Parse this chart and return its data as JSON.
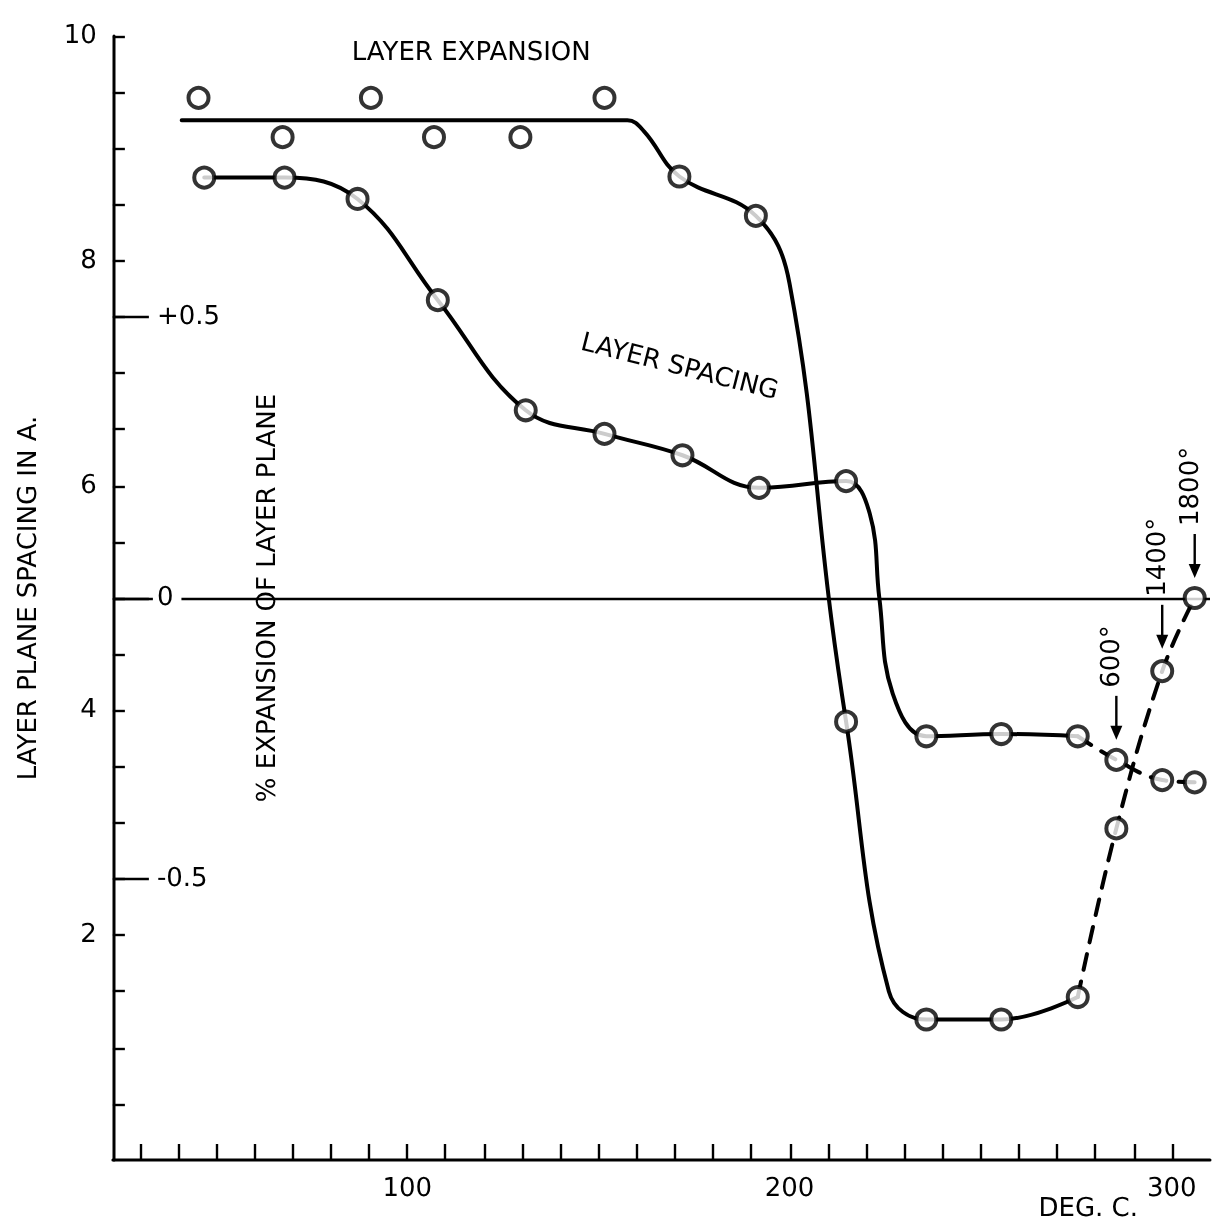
{
  "chart_data": {
    "type": "line",
    "xlabel": "DEG. C.",
    "ylabel": "LAYER PLANE SPACING IN A.",
    "y2label": "% EXPANSION OF LAYER PLANE",
    "xlim": [
      23,
      310
    ],
    "xticks": [
      {
        "value": 30,
        "label": null
      },
      {
        "value": 40,
        "label": null
      },
      {
        "value": 50,
        "label": null
      },
      {
        "value": 60,
        "label": null
      },
      {
        "value": 70,
        "label": null
      },
      {
        "value": 80,
        "label": null
      },
      {
        "value": 90,
        "label": null
      },
      100,
      {
        "value": 110,
        "label": null
      },
      {
        "value": 120,
        "label": null
      },
      {
        "value": 130,
        "label": null
      },
      {
        "value": 140,
        "label": null
      },
      {
        "value": 150,
        "label": null
      },
      {
        "value": 160,
        "label": null
      },
      {
        "value": 170,
        "label": null
      },
      {
        "value": 180,
        "label": null
      },
      {
        "value": 190,
        "label": null
      },
      200,
      {
        "value": 210,
        "label": null
      },
      {
        "value": 220,
        "label": null
      },
      {
        "value": 230,
        "label": null
      },
      {
        "value": 240,
        "label": null
      },
      {
        "value": 250,
        "label": null
      },
      {
        "value": 260,
        "label": null
      },
      {
        "value": 270,
        "label": null
      },
      {
        "value": 280,
        "label": null
      },
      {
        "value": 290,
        "label": null
      },
      300
    ],
    "ylim": [
      0,
      10
    ],
    "yticks": [
      {
        "value": 0.5,
        "label": null
      },
      {
        "value": 1,
        "label": null
      },
      {
        "value": 1.5,
        "label": null
      },
      2,
      {
        "value": 2.5,
        "label": null
      },
      {
        "value": 3,
        "label": null
      },
      {
        "value": 3.5,
        "label": null
      },
      4,
      {
        "value": 4.5,
        "label": null
      },
      {
        "value": 5,
        "label": null
      },
      {
        "value": 5.5,
        "label": null
      },
      6,
      {
        "value": 6.5,
        "label": null
      },
      {
        "value": 7,
        "label": null
      },
      {
        "value": 7.5,
        "label": null
      },
      8,
      {
        "value": 8.5,
        "label": null
      },
      {
        "value": 9,
        "label": null
      },
      {
        "value": 9.5,
        "label": null
      },
      10
    ],
    "y2lim": [
      -1,
      1
    ],
    "y2ticks": [
      {
        "value": -0.5,
        "label": "-0.5"
      },
      0,
      {
        "value": 0.5,
        "label": "+0.5"
      }
    ],
    "grid": false,
    "legend": false,
    "ref_lines": [
      {
        "axis": "y2",
        "value": 0,
        "color": "#000000",
        "line_style": "solid"
      }
    ],
    "annotations": [
      {
        "text": "600°",
        "x": 285.5,
        "y": 3.56
      },
      {
        "text": "1400°",
        "x": 297.5,
        "y": 4.37
      },
      {
        "text": "1800°",
        "x": 306,
        "y": 5.0
      }
    ],
    "series": [
      {
        "type": "scatter",
        "axis": "y2",
        "marker": "circle",
        "color": "#000000",
        "x": [
          45.4,
          67.4,
          90.5,
          107,
          129.6,
          151.6,
          171.2,
          191.2,
          214.8,
          235.8,
          255.4,
          275.4,
          285.5,
          297.5,
          306
        ],
        "values": [
          0.89,
          0.82,
          0.89,
          0.82,
          0.82,
          0.89,
          0.75,
          0.68,
          -0.22,
          -0.75,
          -0.75,
          -0.71,
          -0.41,
          -0.13,
          0
        ]
      },
      {
        "type": "scatter",
        "axis": "y",
        "marker": "circle",
        "color": "#000000",
        "x": [
          46.9,
          67.9,
          87,
          108,
          131,
          151.6,
          172,
          192,
          214.8,
          235.8,
          255.4,
          275.4,
          285.5,
          297.5,
          306
        ],
        "values": [
          8.74,
          8.74,
          8.55,
          7.65,
          6.67,
          6.46,
          6.27,
          5.98,
          6.04,
          3.77,
          3.79,
          3.77,
          3.56,
          3.38,
          3.36
        ]
      },
      {
        "type": "line",
        "name": "LAYER EXPANSION",
        "axis": "y2",
        "marker": "none",
        "line_style": "solid",
        "color": "#000000",
        "x": [
          41,
          157.6,
          162,
          171.2,
          191.2,
          200,
          211,
          214.8,
          226,
          235.8,
          255.4,
          275.4
        ],
        "values": [
          0.85,
          0.85,
          0.83,
          0.75,
          0.68,
          0.56,
          -0.04,
          -0.22,
          -0.7,
          -0.75,
          -0.75,
          -0.71
        ]
      },
      {
        "type": "line",
        "axis": "y2",
        "marker": "none",
        "line_style": "dashed",
        "color": "#000000",
        "x": [
          275.4,
          285.5,
          297.5,
          306
        ],
        "values": [
          -0.71,
          -0.41,
          -0.13,
          0
        ]
      },
      {
        "type": "line",
        "name": "LAYER SPACING",
        "axis": "y",
        "marker": "none",
        "line_style": "solid",
        "color": "#000000",
        "x": [
          46.9,
          67.9,
          87,
          108,
          131,
          151.6,
          172,
          192,
          214.8,
          221,
          223.5,
          227,
          235.8,
          255.4,
          275.4
        ],
        "values": [
          8.74,
          8.74,
          8.55,
          7.65,
          6.67,
          6.46,
          6.27,
          5.98,
          6.04,
          5.75,
          5.0,
          4.15,
          3.77,
          3.79,
          3.77
        ]
      },
      {
        "type": "line",
        "axis": "y",
        "marker": "none",
        "line_style": "dashed",
        "color": "#000000",
        "x": [
          275.4,
          285.5,
          297.5,
          306
        ],
        "values": [
          3.77,
          3.56,
          3.38,
          3.36
        ]
      }
    ]
  }
}
